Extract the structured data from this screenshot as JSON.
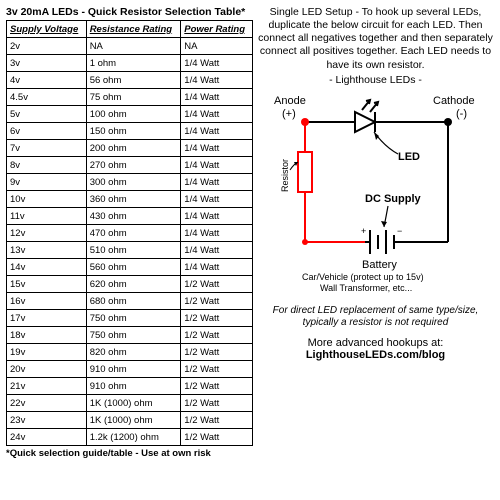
{
  "table": {
    "title": "3v 20mA LEDs - Quick Resistor Selection Table*",
    "headers": [
      "Supply Voltage",
      "Resistance Rating",
      "Power Rating"
    ],
    "rows": [
      [
        "2v",
        "NA",
        "NA"
      ],
      [
        "3v",
        "1 ohm",
        "1/4 Watt"
      ],
      [
        "4v",
        "56 ohm",
        "1/4 Watt"
      ],
      [
        "4.5v",
        "75 ohm",
        "1/4 Watt"
      ],
      [
        "5v",
        "100 ohm",
        "1/4 Watt"
      ],
      [
        "6v",
        "150 ohm",
        "1/4 Watt"
      ],
      [
        "7v",
        "200 ohm",
        "1/4 Watt"
      ],
      [
        "8v",
        "270 ohm",
        "1/4 Watt"
      ],
      [
        "9v",
        "300 ohm",
        "1/4 Watt"
      ],
      [
        "10v",
        "360 ohm",
        "1/4 Watt"
      ],
      [
        "11v",
        "430 ohm",
        "1/4 Watt"
      ],
      [
        "12v",
        "470 ohm",
        "1/4 Watt"
      ],
      [
        "13v",
        "510 ohm",
        "1/4 Watt"
      ],
      [
        "14v",
        "560 ohm",
        "1/4 Watt"
      ],
      [
        "15v",
        "620 ohm",
        "1/2 Watt"
      ],
      [
        "16v",
        "680 ohm",
        "1/2 Watt"
      ],
      [
        "17v",
        "750 ohm",
        "1/2 Watt"
      ],
      [
        "18v",
        "750 ohm",
        "1/2 Watt"
      ],
      [
        "19v",
        "820 ohm",
        "1/2 Watt"
      ],
      [
        "20v",
        "910 ohm",
        "1/2 Watt"
      ],
      [
        "21v",
        "910 ohm",
        "1/2 Watt"
      ],
      [
        "22v",
        "1K (1000) ohm",
        "1/2 Watt"
      ],
      [
        "23v",
        "1K (1000) ohm",
        "1/2 Watt"
      ],
      [
        "24v",
        "1.2k (1200) ohm",
        "1/2 Watt"
      ]
    ],
    "footnote": "*Quick selection guide/table - Use at own risk"
  },
  "instructions": "Single LED Setup - To hook up several LEDs, duplicate the below circuit for each LED. Then connect all negatives together and then separately connect all positives together. Each LED needs to have its own resistor.",
  "brand": "- Lighthouse LEDs -",
  "circuit": {
    "anode": "Anode",
    "anodeSign": "(+)",
    "cathode": "Cathode",
    "cathodeSign": "(-)",
    "led": "LED",
    "resistor": "Resistor",
    "dcsupply": "DC Supply",
    "battery": "Battery",
    "batteryNote1": "Car/Vehicle (protect up to 15v)",
    "batteryNote2": "Wall Transformer, etc...",
    "wireColor": "#ff0000",
    "gndColor": "#000000"
  },
  "note": "For direct LED replacement of same type/size, typically a resistor is not required",
  "more": "More advanced hookups at:",
  "url": "LighthouseLEDs.com/blog"
}
